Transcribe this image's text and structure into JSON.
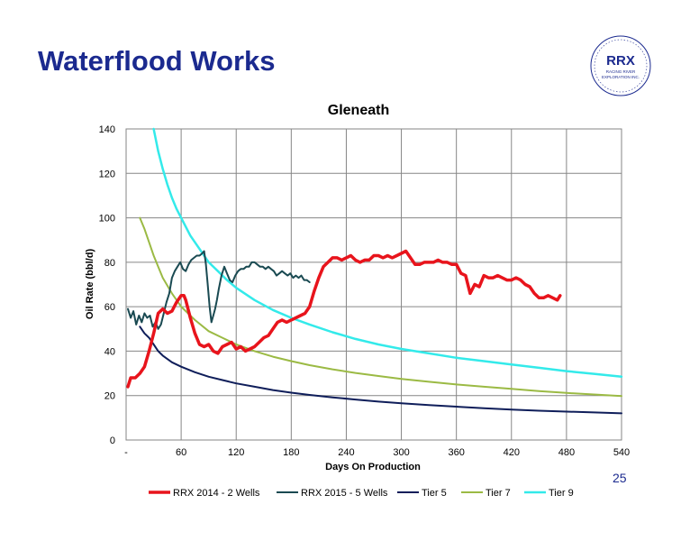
{
  "slide": {
    "title": "Waterflood Works",
    "page_number": "25"
  },
  "logo": {
    "text": "RRX",
    "subtitle_line1": "RACING RIVER",
    "subtitle_line2": "EXPLORATION INC.",
    "color": "#1b2a8f"
  },
  "chart_data": {
    "type": "line",
    "title": "Gleneath",
    "xlabel": "Days On Production",
    "ylabel": "Oil Rate (bbl/d)",
    "xlim": [
      0,
      540
    ],
    "ylim": [
      0,
      140
    ],
    "x_ticks": [
      0,
      60,
      120,
      180,
      240,
      300,
      360,
      420,
      480,
      540
    ],
    "x_tick_labels": [
      "-",
      "60",
      "120",
      "180",
      "240",
      "300",
      "360",
      "420",
      "480",
      "540"
    ],
    "y_ticks": [
      0,
      20,
      40,
      60,
      80,
      100,
      120,
      140
    ],
    "y_tick_labels": [
      "0",
      "20",
      "40",
      "60",
      "80",
      "100",
      "120",
      "140"
    ],
    "grid": true,
    "legend_position": "bottom",
    "series": [
      {
        "name": "RRX 2014 - 2 Wells",
        "color": "#e8141c",
        "width": 3.5,
        "x": [
          2,
          5,
          10,
          15,
          20,
          25,
          30,
          35,
          40,
          45,
          50,
          55,
          60,
          63,
          65,
          70,
          75,
          80,
          85,
          90,
          95,
          100,
          105,
          110,
          115,
          120,
          125,
          130,
          135,
          140,
          145,
          150,
          155,
          160,
          165,
          170,
          175,
          180,
          185,
          190,
          195,
          200,
          205,
          210,
          215,
          220,
          225,
          230,
          235,
          240,
          245,
          250,
          255,
          260,
          265,
          270,
          275,
          280,
          285,
          290,
          295,
          300,
          305,
          310,
          315,
          320,
          325,
          330,
          335,
          340,
          345,
          350,
          355,
          360,
          365,
          370,
          375,
          380,
          385,
          390,
          395,
          400,
          405,
          410,
          415,
          420,
          425,
          430,
          435,
          440,
          445,
          450,
          455,
          460,
          465,
          470,
          473
        ],
        "y": [
          24,
          28,
          28,
          30,
          33,
          40,
          48,
          57,
          59,
          57,
          58,
          62,
          65,
          65,
          63,
          55,
          48,
          43,
          42,
          43,
          40,
          39,
          42,
          43,
          44,
          41,
          42,
          40,
          41,
          42,
          44,
          46,
          47,
          50,
          53,
          54,
          53,
          54,
          55,
          56,
          57,
          60,
          67,
          73,
          78,
          80,
          82,
          82,
          81,
          82,
          83,
          81,
          80,
          81,
          81,
          83,
          83,
          82,
          83,
          82,
          83,
          84,
          85,
          82,
          79,
          79,
          80,
          80,
          80,
          81,
          80,
          80,
          79,
          79,
          75,
          74,
          66,
          70,
          69,
          74,
          73,
          73,
          74,
          73,
          72,
          72,
          73,
          72,
          70,
          69,
          66,
          64,
          64,
          65,
          64,
          63,
          65
        ]
      },
      {
        "name": "RRX 2015 - 5 Wells",
        "color": "#1a4a52",
        "width": 2,
        "x": [
          2,
          5,
          8,
          11,
          14,
          17,
          20,
          23,
          26,
          29,
          32,
          35,
          38,
          41,
          44,
          47,
          50,
          53,
          56,
          59,
          62,
          65,
          68,
          71,
          74,
          77,
          80,
          83,
          85,
          87,
          89,
          91,
          93,
          95,
          97,
          99,
          101,
          104,
          107,
          110,
          113,
          116,
          119,
          122,
          125,
          128,
          131,
          134,
          137,
          140,
          143,
          146,
          149,
          152,
          155,
          158,
          161,
          164,
          167,
          170,
          173,
          176,
          179,
          182,
          185,
          188,
          191,
          194,
          197,
          200
        ],
        "y": [
          59,
          55,
          58,
          52,
          56,
          53,
          57,
          55,
          56,
          51,
          53,
          50,
          52,
          57,
          62,
          66,
          73,
          76,
          78,
          80,
          77,
          76,
          79,
          81,
          82,
          83,
          83,
          84,
          85,
          79,
          70,
          60,
          53,
          56,
          59,
          63,
          68,
          74,
          78,
          75,
          72,
          71,
          74,
          76,
          77,
          77,
          78,
          78,
          80,
          80,
          79,
          78,
          78,
          77,
          78,
          77,
          76,
          74,
          75,
          76,
          75,
          74,
          75,
          73,
          74,
          73,
          74,
          72,
          72,
          71
        ]
      },
      {
        "name": "Tier 5",
        "color": "#0f1e5a",
        "width": 2,
        "x": [
          15,
          20,
          25,
          30,
          35,
          40,
          50,
          60,
          75,
          90,
          105,
          120,
          140,
          160,
          180,
          200,
          225,
          250,
          275,
          300,
          330,
          360,
          390,
          420,
          450,
          480,
          510,
          540
        ],
        "y": [
          51,
          48,
          46,
          43,
          40,
          38,
          35,
          33,
          30.5,
          28.5,
          27,
          25.5,
          24,
          22.5,
          21.3,
          20.3,
          19.2,
          18.2,
          17.3,
          16.5,
          15.7,
          15,
          14.3,
          13.7,
          13.2,
          12.8,
          12.4,
          12
        ]
      },
      {
        "name": "Tier 7",
        "color": "#9bba44",
        "width": 2,
        "x": [
          15,
          20,
          25,
          30,
          35,
          40,
          50,
          60,
          75,
          90,
          105,
          120,
          140,
          160,
          180,
          200,
          225,
          250,
          275,
          300,
          330,
          360,
          390,
          420,
          450,
          480,
          510,
          540
        ],
        "y": [
          100,
          95,
          89,
          83,
          78,
          73,
          66,
          60,
          54,
          49,
          46,
          43,
          40,
          37.5,
          35.5,
          33.7,
          31.8,
          30.2,
          28.8,
          27.5,
          26.2,
          25,
          24,
          23,
          22,
          21.2,
          20.5,
          19.8
        ]
      },
      {
        "name": "Tier 9",
        "color": "#33eaea",
        "width": 2.5,
        "x": [
          30,
          35,
          40,
          45,
          50,
          55,
          60,
          70,
          80,
          90,
          100,
          110,
          120,
          140,
          160,
          180,
          200,
          225,
          250,
          275,
          300,
          330,
          360,
          390,
          420,
          450,
          480,
          510,
          540
        ],
        "y": [
          140,
          130,
          122,
          115,
          109,
          104,
          100,
          92,
          86,
          80,
          76,
          72,
          68.5,
          63,
          58.5,
          55,
          52,
          48.5,
          45.5,
          43,
          41,
          39,
          37,
          35.5,
          34,
          32.5,
          31,
          29.8,
          28.5
        ]
      }
    ]
  }
}
